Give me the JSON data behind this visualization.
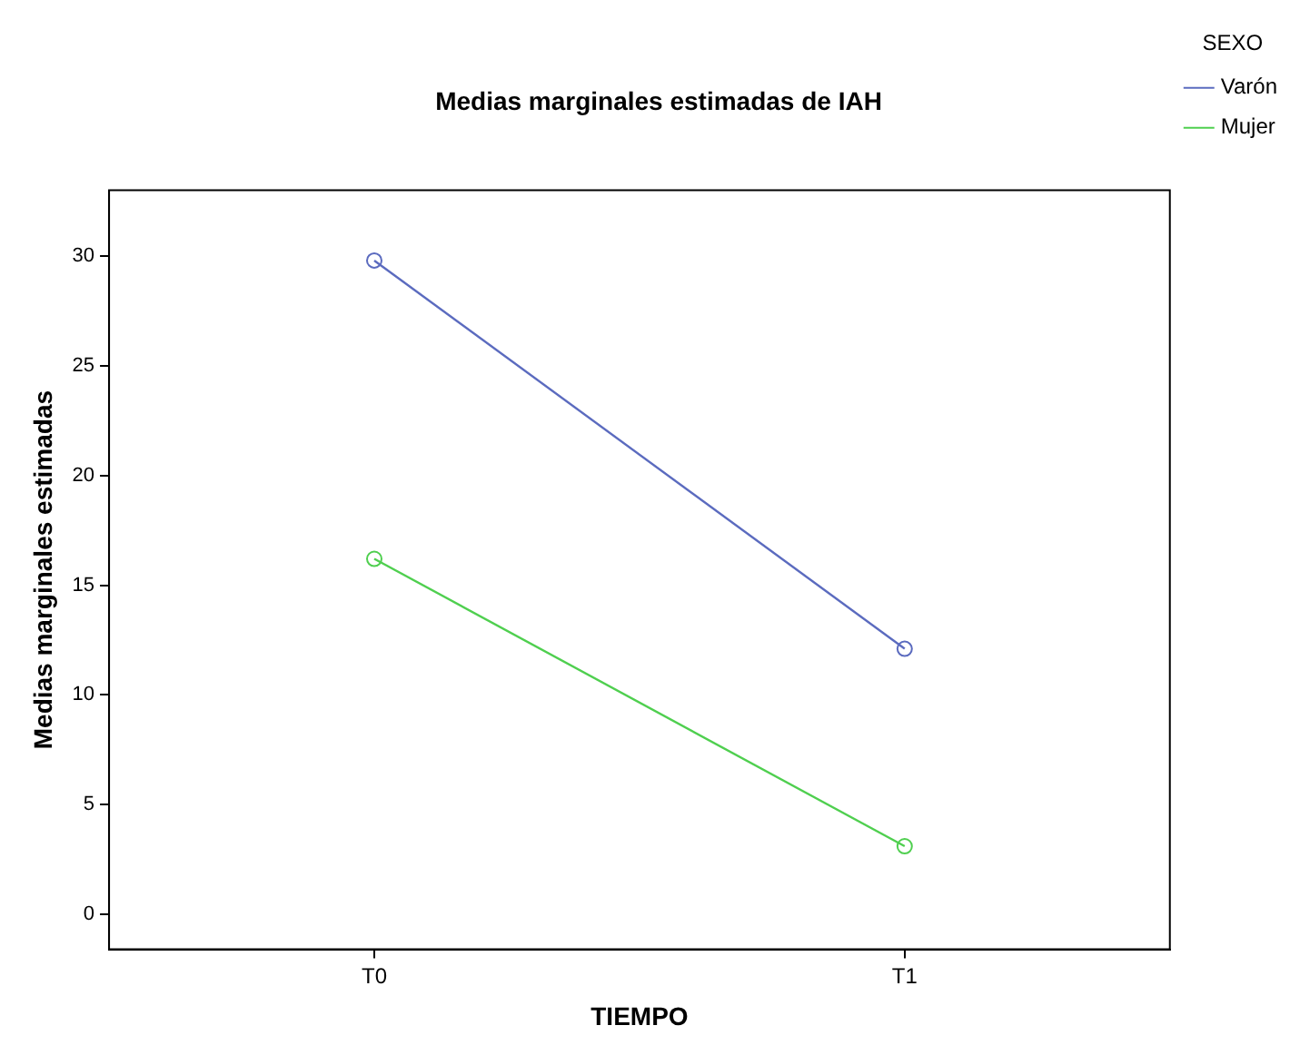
{
  "chart_data": {
    "type": "line",
    "title": "Medias marginales estimadas de IAH",
    "xlabel": "TIEMPO",
    "ylabel": "Medias marginales estimadas",
    "legend_title": "SEXO",
    "categories": [
      "T0",
      "T1"
    ],
    "series": [
      {
        "name": "Varón",
        "color": "#5b6bbf",
        "values": [
          29.8,
          12.1
        ]
      },
      {
        "name": "Mujer",
        "color": "#4fcf4f",
        "values": [
          16.2,
          3.1
        ]
      }
    ],
    "ylim": [
      -1.6,
      33
    ],
    "yticks": [
      0,
      5,
      10,
      15,
      20,
      25,
      30
    ],
    "grid": false,
    "legend": "right",
    "marker": "circle",
    "line_style": "solid"
  }
}
